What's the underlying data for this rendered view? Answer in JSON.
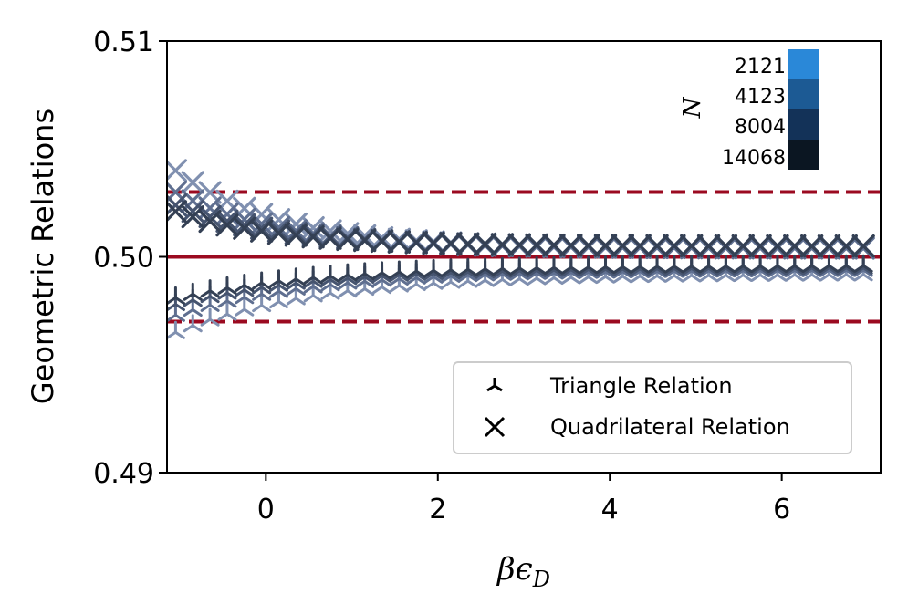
{
  "chart_data": {
    "type": "scatter",
    "xlabel": "βϵ",
    "xlabel_sub": "D",
    "ylabel": "Geometric Relations",
    "xlim": [
      -1.15,
      7.15
    ],
    "ylim": [
      0.49,
      0.51
    ],
    "x_ticks": [
      0,
      2,
      4,
      6
    ],
    "x_tick_labels": [
      "0",
      "2",
      "4",
      "6"
    ],
    "y_ticks": [
      0.49,
      0.5,
      0.51
    ],
    "y_tick_labels": [
      "0.49",
      "0.50",
      "0.51"
    ],
    "reference_lines": [
      {
        "y": 0.5,
        "style": "solid",
        "color": "#9b0a20"
      },
      {
        "y": 0.503,
        "style": "dashed",
        "color": "#9b0a20"
      },
      {
        "y": 0.497,
        "style": "dashed",
        "color": "#9b0a20"
      }
    ],
    "x_start": -1.05,
    "x_step": 0.2,
    "n_points": 41,
    "series": [
      {
        "name": "2121",
        "color": "#8090b0",
        "tri": {
          "start": 0.4965,
          "end": 0.4992,
          "tau": 1.6
        },
        "quad": {
          "start": 0.504,
          "end": 0.5004,
          "tau": 1.2
        }
      },
      {
        "name": "4123",
        "color": "#5f6f90",
        "tri": {
          "start": 0.4973,
          "end": 0.4994,
          "tau": 1.6
        },
        "quad": {
          "start": 0.503,
          "end": 0.5004,
          "tau": 1.2
        }
      },
      {
        "name": "8004",
        "color": "#46546f",
        "tri": {
          "start": 0.4978,
          "end": 0.4995,
          "tau": 1.6
        },
        "quad": {
          "start": 0.5024,
          "end": 0.5005,
          "tau": 1.2
        }
      },
      {
        "name": "14068",
        "color": "#344054",
        "tri": {
          "start": 0.4981,
          "end": 0.4996,
          "tau": 1.6
        },
        "quad": {
          "start": 0.5021,
          "end": 0.5005,
          "tau": 1.2
        }
      }
    ],
    "legend": {
      "position": "bottom-right",
      "entries": [
        {
          "marker": "tri-down",
          "label": "Triangle Relation"
        },
        {
          "marker": "x",
          "label": "Quadrilateral Relation"
        }
      ]
    },
    "colorbar": {
      "title": "N",
      "position": "top-right",
      "entries": [
        {
          "label": "2121",
          "color": "#2a88d8"
        },
        {
          "label": "4123",
          "color": "#1c5a94"
        },
        {
          "label": "8004",
          "color": "#133258"
        },
        {
          "label": "14068",
          "color": "#0b1622"
        }
      ]
    }
  }
}
